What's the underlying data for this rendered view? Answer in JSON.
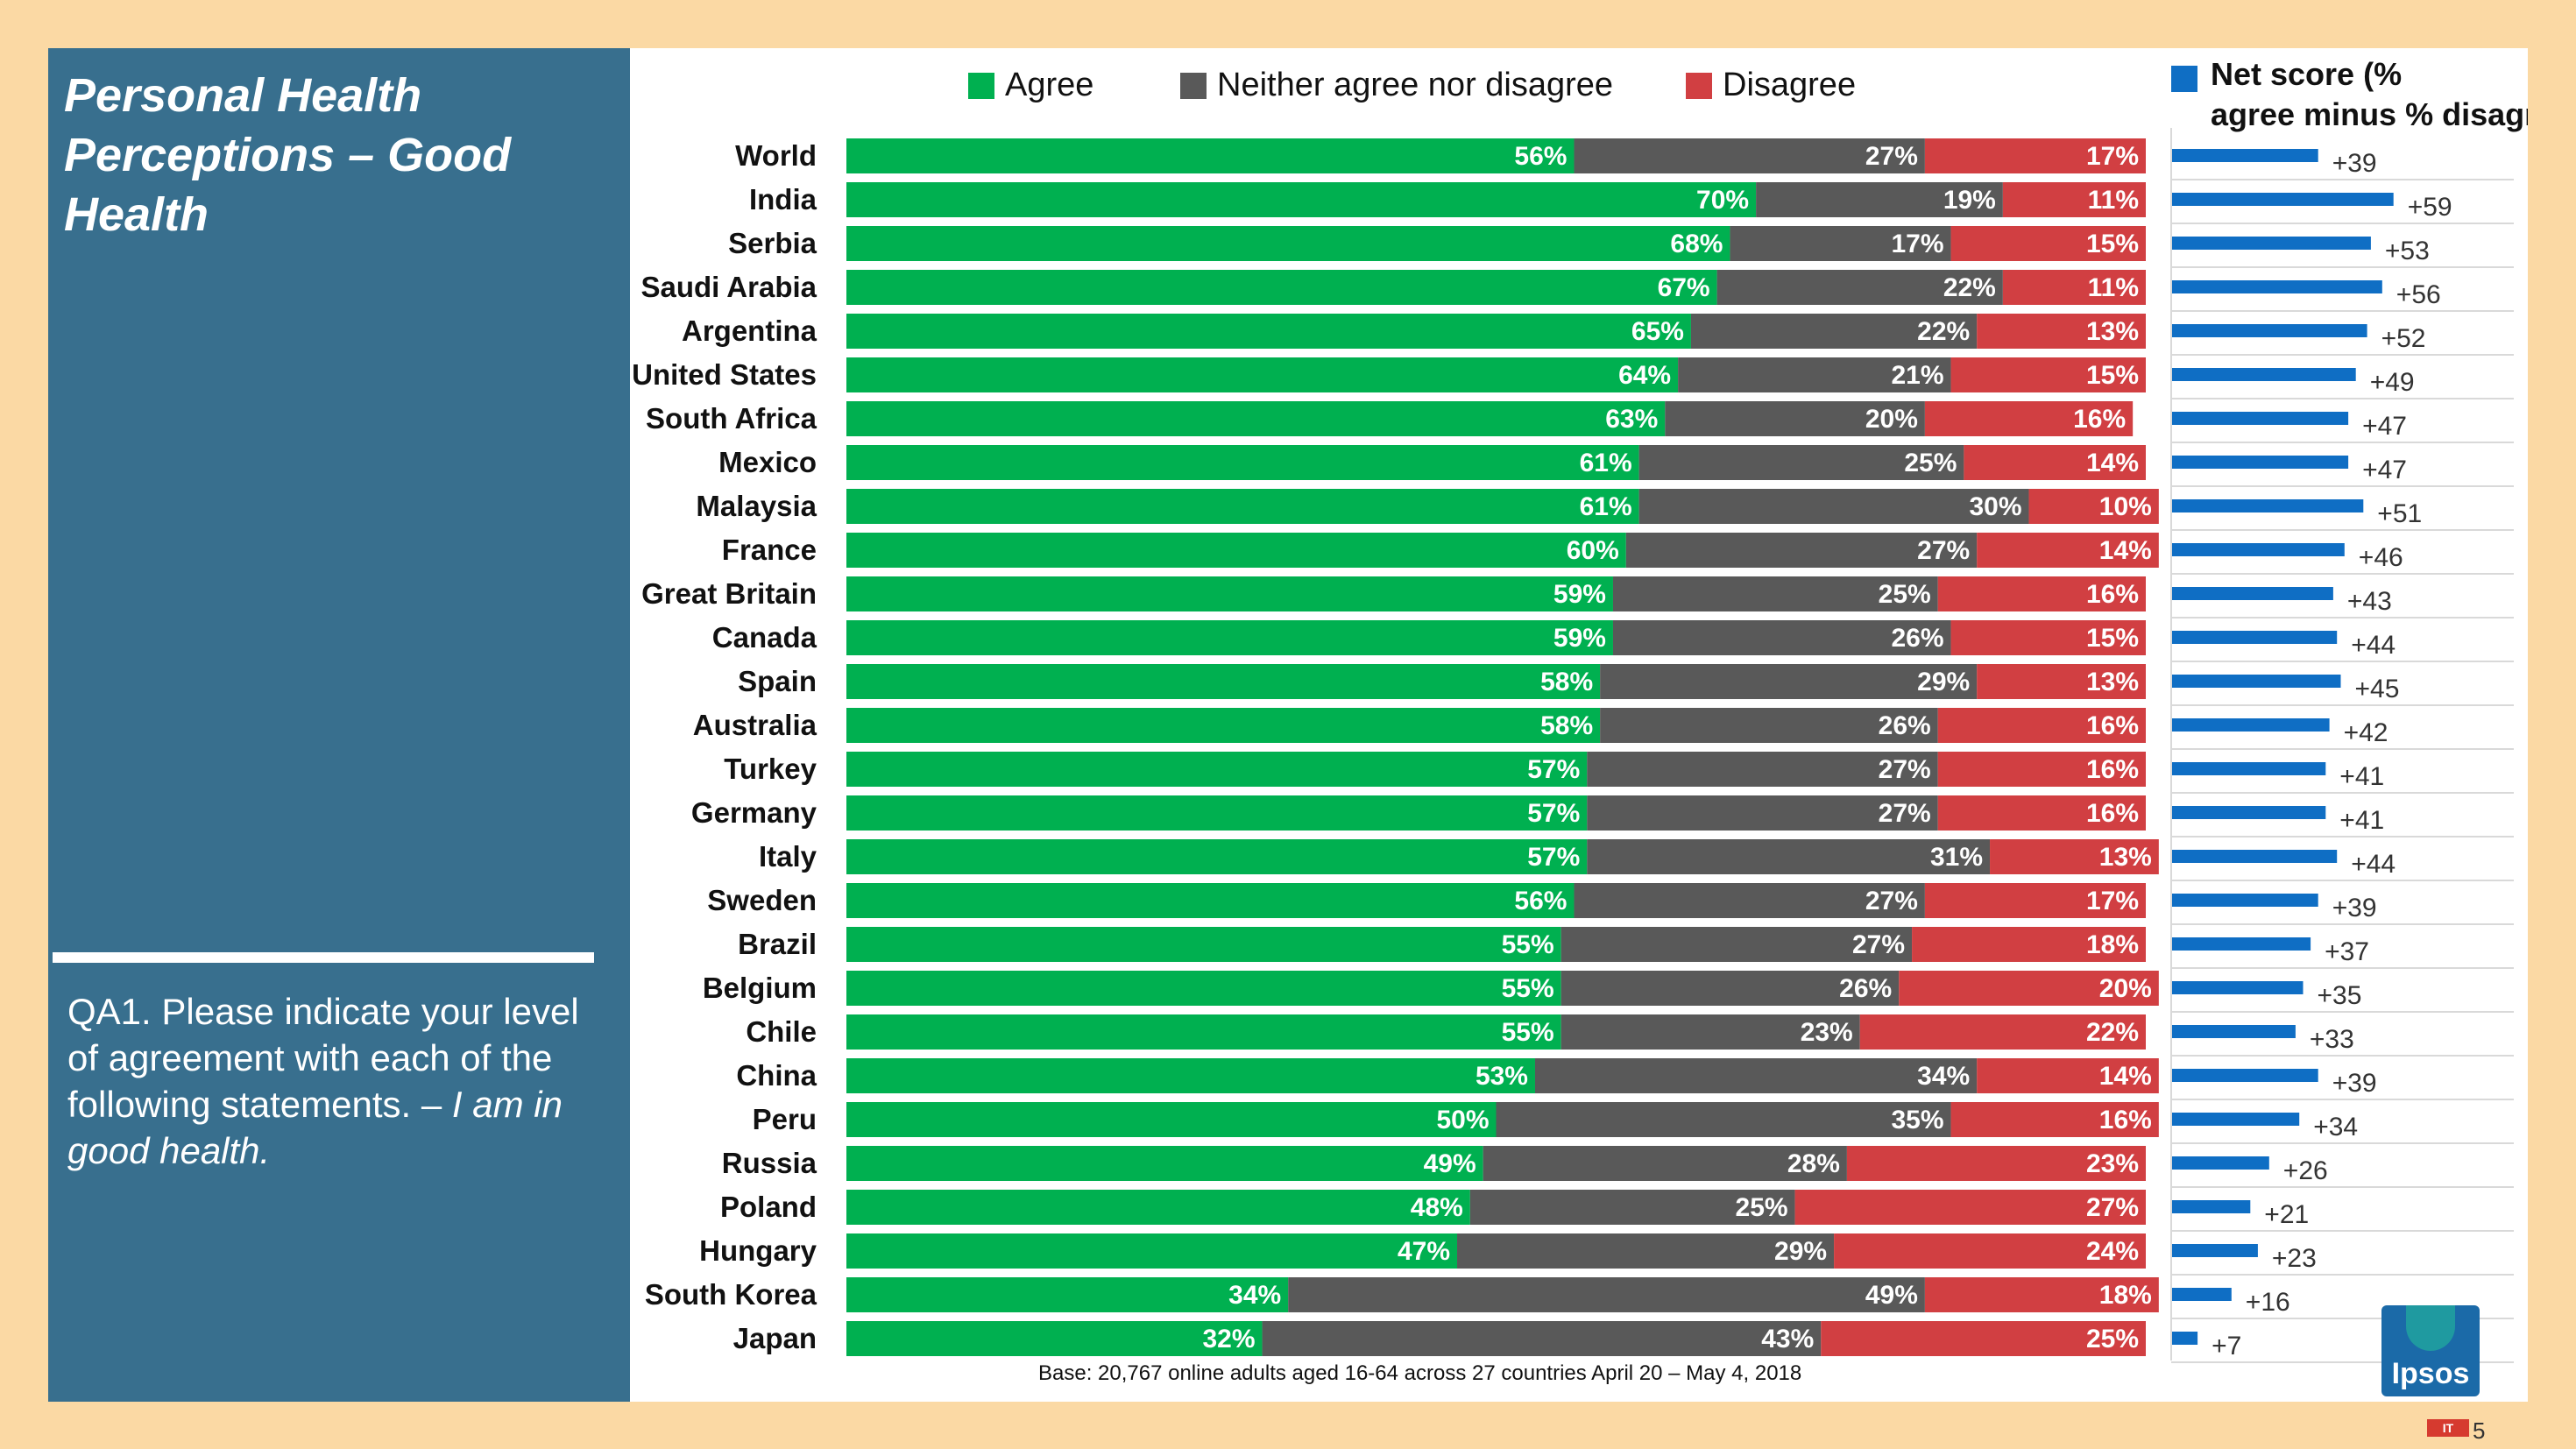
{
  "panel": {
    "title": "Personal Health\nPerceptions – Good Health",
    "question": "QA1. Please indicate your level of agreement with each of the following statements. –",
    "question_italic": "I am in good health."
  },
  "footer": {
    "base_note": "Base: 20,767 online adults aged 16-64 across 27 countries  April 20 – May 4, 2018",
    "logo_text": "Ipsos",
    "page_number": "5",
    "watermark": "IT"
  },
  "colors": {
    "agree": "#00b050",
    "neither": "#595959",
    "disagree": "#d13f42",
    "net": "#0f6ec4",
    "panel": "#386f8e",
    "background": "#fbd9a4"
  },
  "chart_data": [
    {
      "type": "bar",
      "orientation": "horizontal",
      "stacked": true,
      "legend": [
        "Agree",
        "Neither agree nor disagree",
        "Disagree"
      ],
      "categories": [
        "World",
        "India",
        "Serbia",
        "Saudi Arabia",
        "Argentina",
        "United States",
        "South Africa",
        "Mexico",
        "Malaysia",
        "France",
        "Great Britain",
        "Canada",
        "Spain",
        "Australia",
        "Turkey",
        "Germany",
        "Italy",
        "Sweden",
        "Brazil",
        "Belgium",
        "Chile",
        "China",
        "Peru",
        "Russia",
        "Poland",
        "Hungary",
        "South Korea",
        "Japan"
      ],
      "series": [
        {
          "name": "Agree",
          "values": [
            56,
            70,
            68,
            67,
            65,
            64,
            63,
            61,
            61,
            60,
            59,
            59,
            58,
            58,
            57,
            57,
            57,
            56,
            55,
            55,
            55,
            53,
            50,
            49,
            48,
            47,
            34,
            32
          ]
        },
        {
          "name": "Neither agree nor disagree",
          "values": [
            27,
            19,
            17,
            22,
            22,
            21,
            20,
            25,
            30,
            27,
            25,
            26,
            29,
            26,
            27,
            27,
            31,
            27,
            27,
            26,
            23,
            34,
            35,
            28,
            25,
            29,
            49,
            43
          ]
        },
        {
          "name": "Disagree",
          "values": [
            17,
            11,
            15,
            11,
            13,
            15,
            16,
            14,
            10,
            14,
            16,
            15,
            13,
            16,
            16,
            16,
            13,
            17,
            18,
            20,
            22,
            14,
            16,
            23,
            27,
            24,
            18,
            25
          ]
        }
      ],
      "value_suffix": "%"
    },
    {
      "type": "bar",
      "orientation": "horizontal",
      "title": "Net score (% agree minus % disagree)",
      "categories": [
        "World",
        "India",
        "Serbia",
        "Saudi Arabia",
        "Argentina",
        "United States",
        "South Africa",
        "Mexico",
        "Malaysia",
        "France",
        "Great Britain",
        "Canada",
        "Spain",
        "Australia",
        "Turkey",
        "Germany",
        "Italy",
        "Sweden",
        "Brazil",
        "Belgium",
        "Chile",
        "China",
        "Peru",
        "Russia",
        "Poland",
        "Hungary",
        "South Korea",
        "Japan"
      ],
      "values": [
        39,
        59,
        53,
        56,
        52,
        49,
        47,
        47,
        51,
        46,
        43,
        44,
        45,
        42,
        41,
        41,
        44,
        39,
        37,
        35,
        33,
        39,
        34,
        26,
        21,
        23,
        16,
        7
      ],
      "value_prefix": "+"
    }
  ]
}
